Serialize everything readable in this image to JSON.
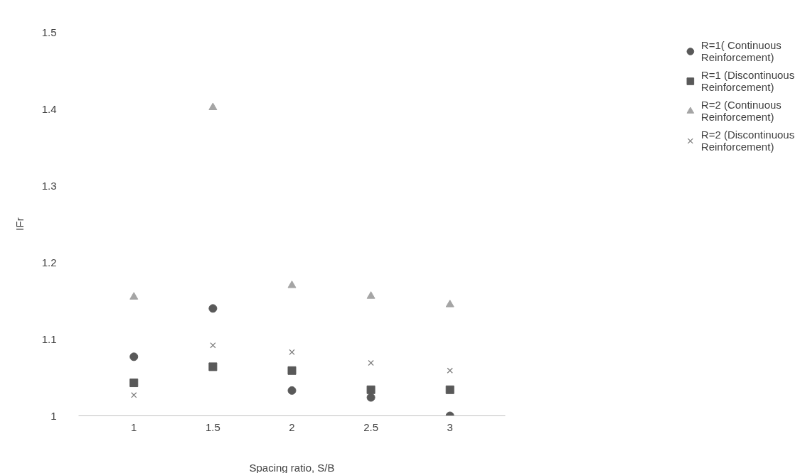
{
  "chart_data": {
    "type": "scatter",
    "xlabel": "Spacing ratio, S/B",
    "ylabel": "IFr",
    "categories": [
      "1",
      "1.5",
      "2",
      "2.5",
      "3"
    ],
    "ylim": [
      1,
      1.5
    ],
    "yticks": [
      1,
      1.1,
      1.2,
      1.3,
      1.4,
      1.5
    ],
    "grid": false,
    "legend": "top right",
    "series": [
      {
        "name": "R=1( Continuous Reinforcement)",
        "color": "#595959",
        "marker": "circle",
        "values": [
          1.077,
          1.14,
          1.033,
          1.024,
          1.0
        ]
      },
      {
        "name": "R=1 (Discontinuous Reinforcement)",
        "color": "#595959",
        "marker": "square",
        "values": [
          1.043,
          1.064,
          1.059,
          1.034,
          1.034
        ]
      },
      {
        "name": "R=2 (Continuous Reinforcement)",
        "color": "#a5a5a5",
        "marker": "triangle",
        "values": [
          1.155,
          1.402,
          1.17,
          1.156,
          1.145
        ]
      },
      {
        "name": "R=2 (Discontinuous Reinforcement)",
        "color": "#7f7f7f",
        "marker": "cross",
        "values": [
          1.027,
          1.092,
          1.083,
          1.069,
          1.059
        ]
      }
    ]
  }
}
